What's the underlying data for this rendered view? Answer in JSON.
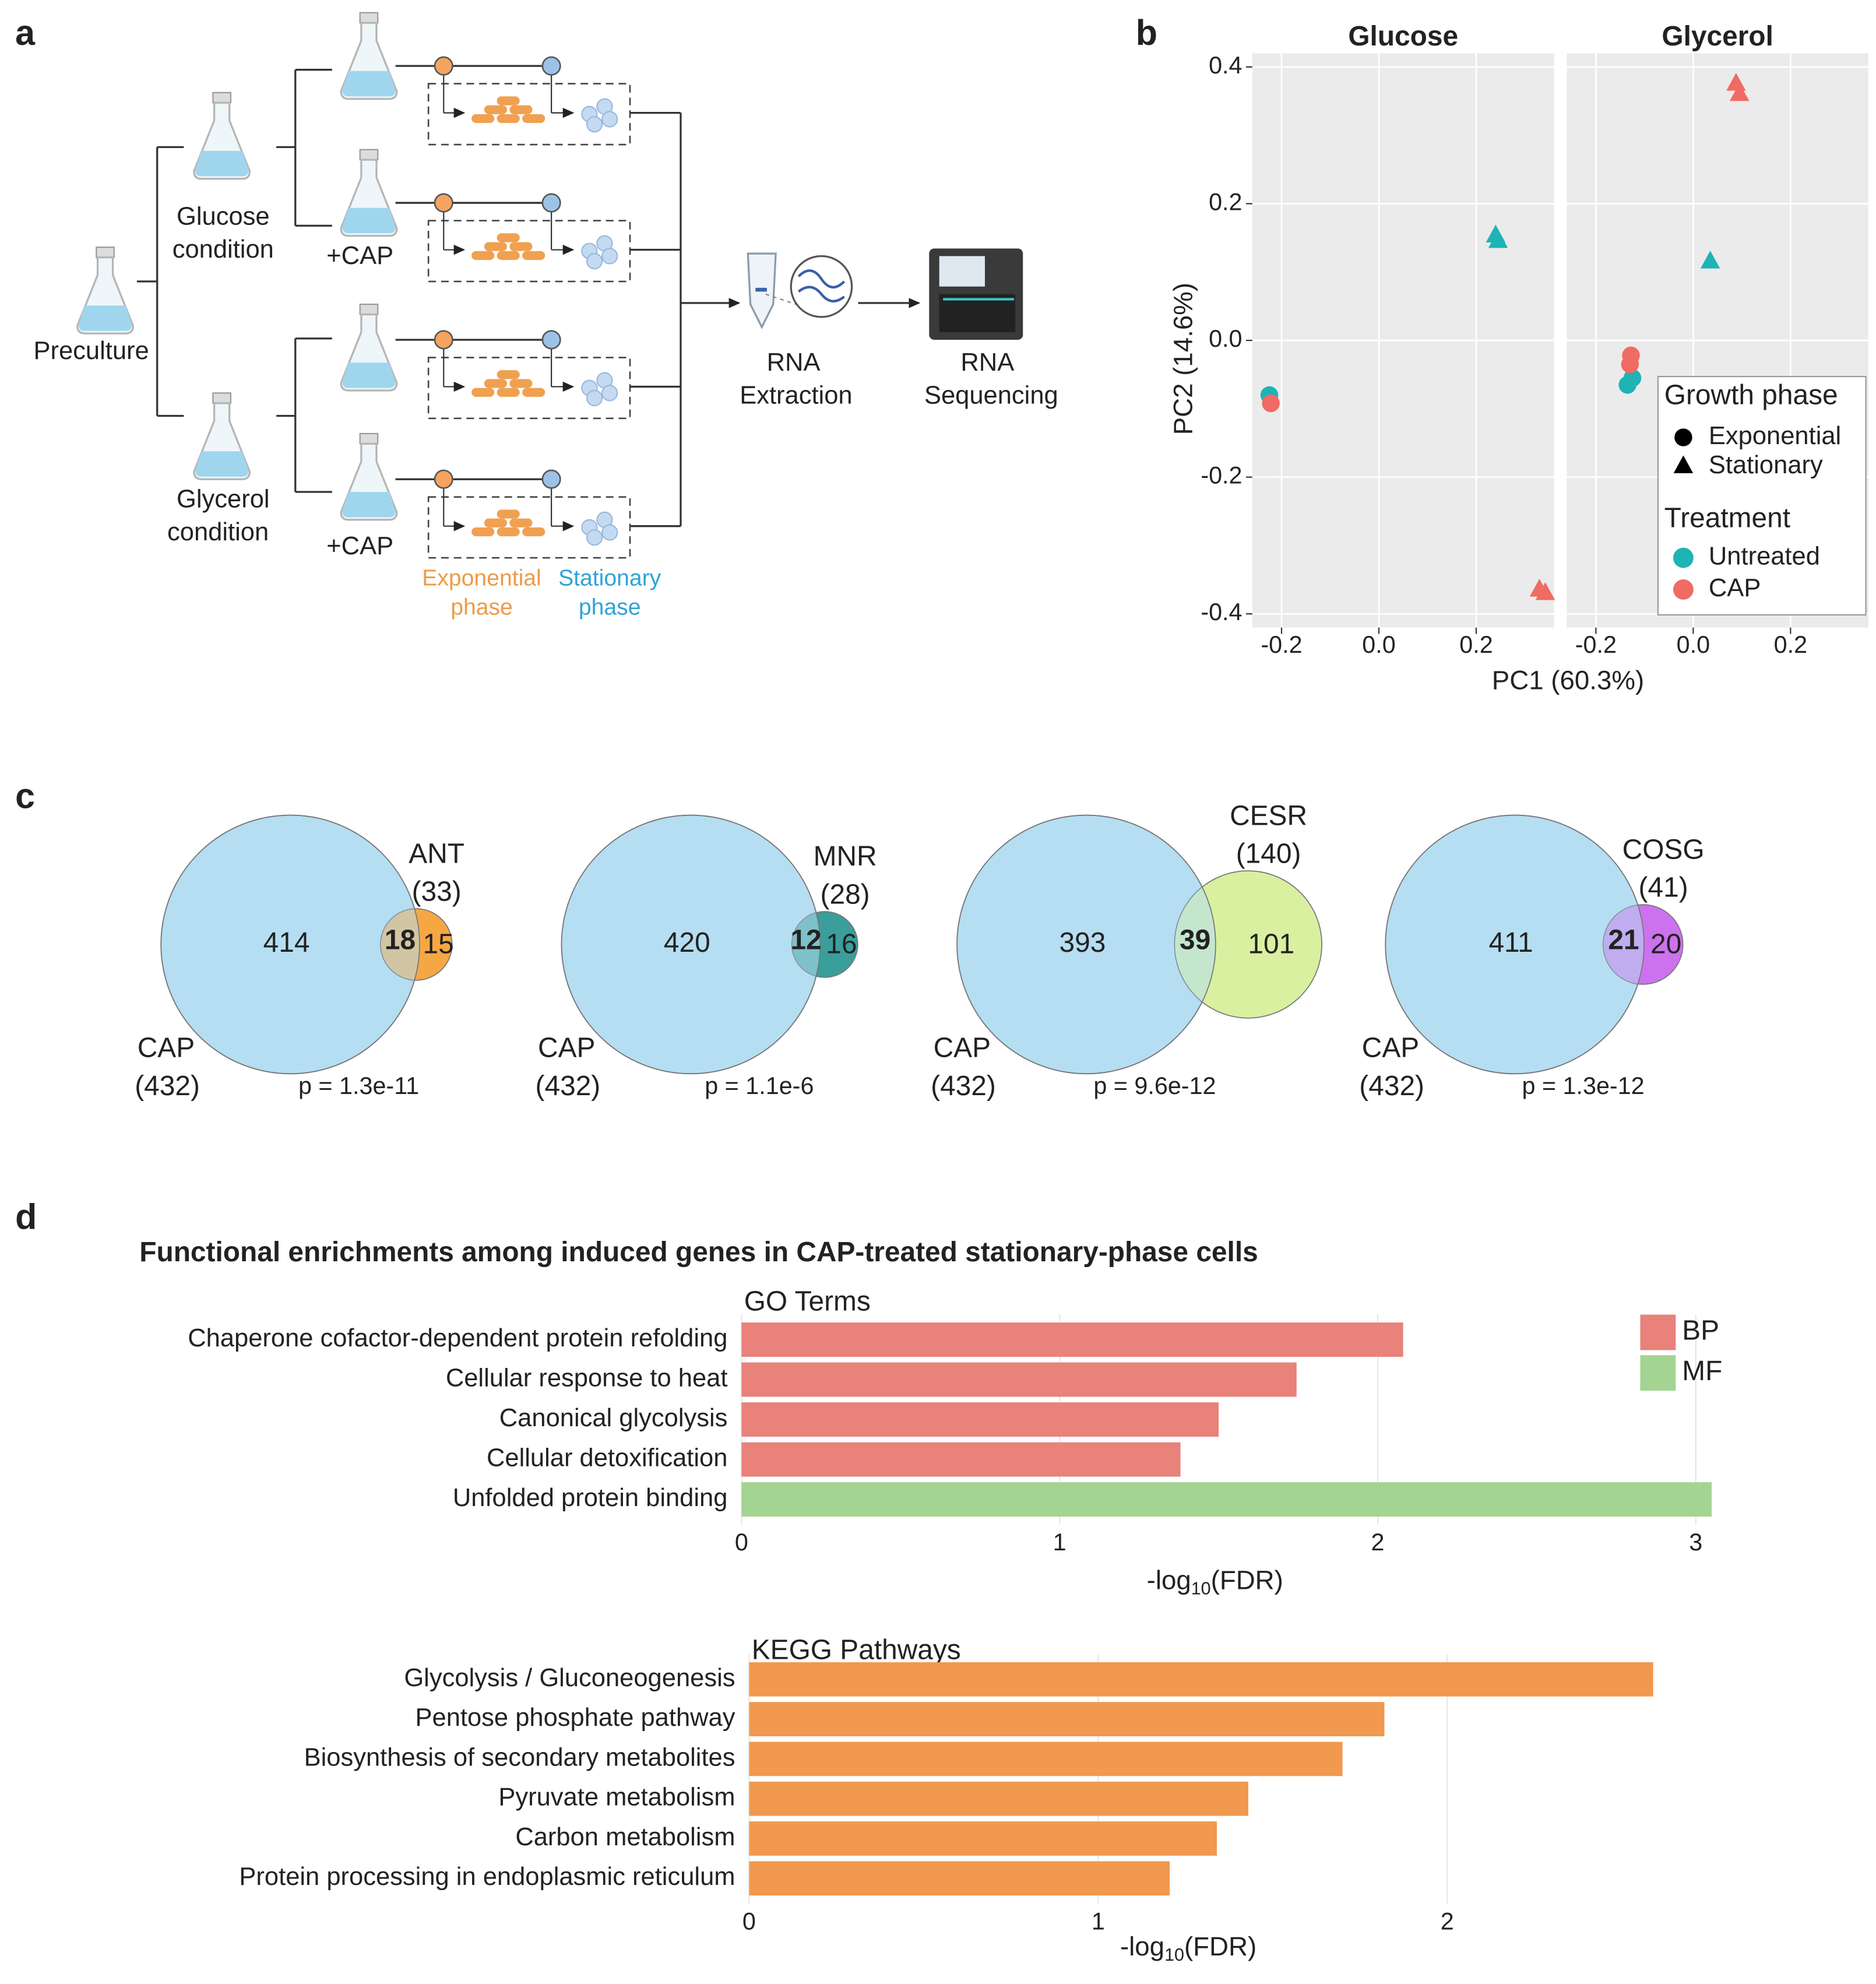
{
  "panel_labels": [
    "a",
    "b",
    "c",
    "d"
  ],
  "diagram": {
    "preculture": "Preculture",
    "glucose": [
      "Glucose",
      "condition"
    ],
    "glycerol": [
      "Glycerol",
      "condition"
    ],
    "cap_labels": [
      "+CAP",
      "+CAP"
    ],
    "exponential": [
      "Exponential",
      "phase"
    ],
    "stationary": [
      "Stationary",
      "phase"
    ],
    "extraction": [
      "RNA",
      "Extraction"
    ],
    "sequencing": [
      "RNA",
      "Sequencing"
    ]
  },
  "chart_data": [
    {
      "type": "scatter",
      "facets": [
        "Glucose",
        "Glycerol"
      ],
      "x_label": "PC1 (60.3%)",
      "y_label": "PC2 (14.6%)",
      "xlim": [
        -0.26,
        0.36
      ],
      "ylim": [
        -0.42,
        0.42
      ],
      "xticks": [
        -0.2,
        {
          "value": 0,
          "label": "0.0"
        },
        0.2
      ],
      "yticks": [
        -0.4,
        -0.2,
        {
          "value": 0,
          "label": "0.0"
        },
        0.2,
        0.4
      ],
      "grid": true,
      "legend": {
        "shape_title": "Growth phase",
        "shapes": [
          {
            "name": "Exponential",
            "shape": "circle"
          },
          {
            "name": "Stationary",
            "shape": "triangle"
          }
        ],
        "color_title": "Treatment",
        "colors": [
          {
            "name": "Untreated",
            "color": "#1eb3b5"
          },
          {
            "name": "CAP",
            "color": "#ef6b63"
          }
        ]
      },
      "series": [
        {
          "facet": 0,
          "shape": 0,
          "color": 0,
          "x": [
            -0.225
          ],
          "y": [
            -0.08
          ]
        },
        {
          "facet": 0,
          "shape": 0,
          "color": 1,
          "x": [
            -0.222
          ],
          "y": [
            -0.092
          ]
        },
        {
          "facet": 0,
          "shape": 1,
          "color": 0,
          "x": [
            0.24,
            0.245
          ],
          "y": [
            0.153,
            0.145
          ]
        },
        {
          "facet": 0,
          "shape": 1,
          "color": 1,
          "x": [
            0.33,
            0.342
          ],
          "y": [
            -0.365,
            -0.37
          ]
        },
        {
          "facet": 1,
          "shape": 0,
          "color": 0,
          "x": [
            -0.135,
            -0.125
          ],
          "y": [
            -0.065,
            -0.055
          ]
        },
        {
          "facet": 1,
          "shape": 0,
          "color": 1,
          "x": [
            -0.13,
            -0.128
          ],
          "y": [
            -0.035,
            -0.022
          ]
        },
        {
          "facet": 1,
          "shape": 1,
          "color": 0,
          "x": [
            0.035
          ],
          "y": [
            0.115
          ]
        },
        {
          "facet": 1,
          "shape": 1,
          "color": 1,
          "x": [
            0.088,
            0.095
          ],
          "y": [
            0.375,
            0.36
          ]
        }
      ]
    },
    {
      "type": "venn",
      "sets": [
        {
          "name": "CAP",
          "size": {
            "value": 432,
            "label": "(432)"
          },
          "color": "#b5def2"
        },
        {
          "name": "ANT",
          "size": {
            "value": 33,
            "label": "(33)"
          },
          "color": "#f5a744"
        }
      ],
      "values": [
        414,
        18,
        15
      ],
      "p_value": {
        "value": 1.3e-11,
        "label": "p = 1.3e-11"
      }
    },
    {
      "type": "venn",
      "sets": [
        {
          "name": "CAP",
          "size": {
            "value": 432,
            "label": "(432)"
          },
          "color": "#b5def2"
        },
        {
          "name": "MNR",
          "size": {
            "value": 28,
            "label": "(28)"
          },
          "color": "#3a9e9a"
        }
      ],
      "values": [
        420,
        12,
        16
      ],
      "p_value": {
        "value": 1.1e-06,
        "label": "p = 1.1e-6"
      }
    },
    {
      "type": "venn",
      "sets": [
        {
          "name": "CAP",
          "size": {
            "value": 432,
            "label": "(432)"
          },
          "color": "#b5def2"
        },
        {
          "name": "CESR",
          "size": {
            "value": 140,
            "label": "(140)"
          },
          "color": "#d8f0a0"
        }
      ],
      "values": [
        393,
        39,
        101
      ],
      "p_value": {
        "value": 9.6e-12,
        "label": "p = 9.6e-12"
      }
    },
    {
      "type": "venn",
      "sets": [
        {
          "name": "CAP",
          "size": {
            "value": 432,
            "label": "(432)"
          },
          "color": "#b5def2"
        },
        {
          "name": "COSG",
          "size": {
            "value": 41,
            "label": "(41)"
          },
          "color": "#cc72ee"
        }
      ],
      "values": [
        411,
        21,
        20
      ],
      "p_value": {
        "value": 1.3e-12,
        "label": "p = 1.3e-12"
      }
    },
    {
      "type": "bar",
      "orientation": "horizontal",
      "title": "Functional enrichments among induced genes in CAP-treated stationary-phase cells",
      "subtitle": "GO Terms",
      "categories": [
        "Chaperone cofactor-dependent protein refolding",
        "Cellular response to heat",
        "Canonical glycolysis",
        "Cellular detoxification",
        "Unfolded protein binding"
      ],
      "series": [
        {
          "name": "BP",
          "color": "#e8827a",
          "values": [
            2.08,
            1.745,
            1.5,
            1.38,
            null
          ]
        },
        {
          "name": "MF",
          "color": "#a4d491",
          "values": [
            null,
            null,
            null,
            null,
            3.05
          ]
        }
      ],
      "x_label": [
        "-log",
        "10",
        "(FDR)"
      ],
      "xlim": [
        0,
        3.2
      ],
      "xticks": [
        0,
        1,
        2,
        3
      ],
      "grid": true,
      "legend": "top-right"
    },
    {
      "type": "bar",
      "orientation": "horizontal",
      "subtitle": "KEGG Pathways",
      "categories": [
        "Glycolysis / Gluconeogenesis",
        "Pentose phosphate pathway",
        "Biosynthesis of secondary metabolites",
        "Pyruvate metabolism",
        "Carbon metabolism",
        "Protein processing in endoplasmic reticulum"
      ],
      "values": [
        2.59,
        1.82,
        1.7,
        1.43,
        1.34,
        1.205
      ],
      "color": "#f0994f",
      "x_label": [
        "-log",
        "10",
        "(FDR)"
      ],
      "xlim": [
        0,
        2.72
      ],
      "xticks": [
        0,
        1,
        2
      ],
      "grid": true
    }
  ]
}
